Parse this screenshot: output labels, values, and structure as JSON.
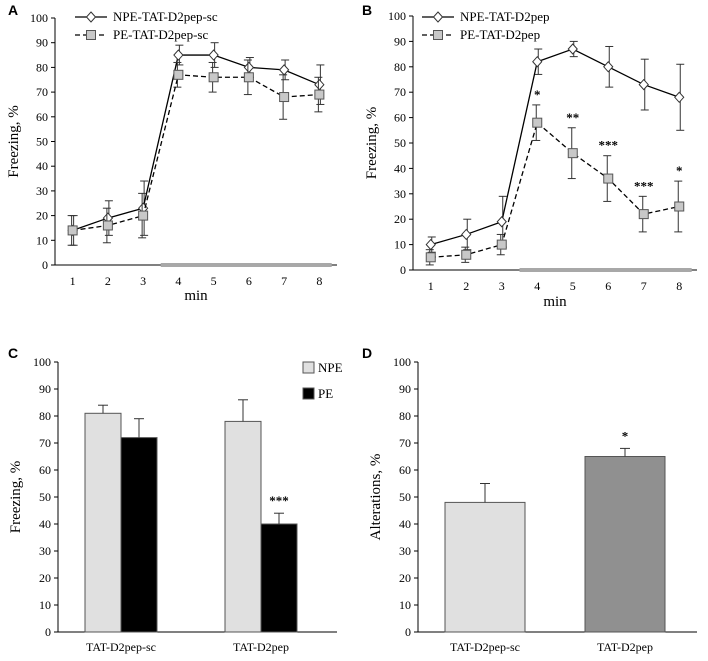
{
  "chart_data": [
    {
      "panel": "A",
      "type": "line",
      "x": [
        "1",
        "2",
        "3",
        "4",
        "5",
        "6",
        "7",
        "8"
      ],
      "ylabel": "Freezing, %",
      "xlabel": "min",
      "ylim": [
        0,
        100
      ],
      "yticks": [
        "0",
        "10",
        "20",
        "30",
        "40",
        "50",
        "60",
        "70",
        "80",
        "90",
        "100"
      ],
      "shock_bar_x": [
        4,
        8
      ],
      "series": [
        {
          "name": "NPE-TAT-D2pep-sc",
          "marker": "diamond",
          "line": "solid",
          "values": [
            14,
            19,
            23,
            85,
            85,
            80,
            79,
            73
          ],
          "errors": [
            6,
            7,
            11,
            4,
            5,
            4,
            4,
            8
          ]
        },
        {
          "name": "PE-TAT-D2pep-sc",
          "marker": "square",
          "line": "dashed",
          "values": [
            14,
            16,
            20,
            77,
            76,
            76,
            68,
            69
          ],
          "errors": [
            6,
            7,
            9,
            5,
            6,
            7,
            9,
            7
          ]
        }
      ]
    },
    {
      "panel": "B",
      "type": "line",
      "x": [
        "1",
        "2",
        "3",
        "4",
        "5",
        "6",
        "7",
        "8"
      ],
      "ylabel": "Freezing, %",
      "xlabel": "min",
      "ylim": [
        0,
        100
      ],
      "yticks": [
        "0",
        "10",
        "20",
        "30",
        "40",
        "50",
        "60",
        "70",
        "80",
        "90",
        "100"
      ],
      "shock_bar_x": [
        4,
        8
      ],
      "series": [
        {
          "name": "NPE-TAT-D2pep",
          "marker": "diamond",
          "line": "solid",
          "values": [
            10,
            14,
            19,
            82,
            87,
            80,
            73,
            68
          ],
          "errors": [
            3,
            6,
            10,
            5,
            3,
            8,
            10,
            13
          ]
        },
        {
          "name": "PE-TAT-D2pep",
          "marker": "square",
          "line": "dashed",
          "values": [
            5,
            6,
            10,
            58,
            46,
            36,
            22,
            25
          ],
          "errors": [
            3,
            3,
            4,
            7,
            10,
            9,
            7,
            10
          ]
        }
      ],
      "annotations": [
        {
          "x": 4,
          "text": "*"
        },
        {
          "x": 5,
          "text": "**"
        },
        {
          "x": 6,
          "text": "***"
        },
        {
          "x": 7,
          "text": "***"
        },
        {
          "x": 8,
          "text": "*"
        }
      ]
    },
    {
      "panel": "C",
      "type": "bar",
      "categories": [
        "TAT-D2pep-sc",
        "TAT-D2pep"
      ],
      "ylabel": "Freezing, %",
      "ylim": [
        0,
        100
      ],
      "yticks": [
        "0",
        "10",
        "20",
        "30",
        "40",
        "50",
        "60",
        "70",
        "80",
        "90",
        "100"
      ],
      "series": [
        {
          "name": "NPE",
          "color": "#e0e0e0",
          "values": [
            81,
            78
          ],
          "errors": [
            3,
            8
          ]
        },
        {
          "name": "PE",
          "color": "#000000",
          "values": [
            72,
            40
          ],
          "errors": [
            7,
            4
          ]
        }
      ],
      "annotations": [
        {
          "category": 1,
          "series": 1,
          "text": "***"
        }
      ]
    },
    {
      "panel": "D",
      "type": "bar",
      "categories": [
        "TAT-D2pep-sc",
        "TAT-D2pep"
      ],
      "ylabel": "Alterations, %",
      "ylim": [
        0,
        100
      ],
      "yticks": [
        "0",
        "10",
        "20",
        "30",
        "40",
        "50",
        "60",
        "70",
        "80",
        "90",
        "100"
      ],
      "colors": [
        "#e0e0e0",
        "#909090"
      ],
      "values": [
        48,
        65
      ],
      "errors": [
        7,
        3
      ],
      "annotations": [
        {
          "category": 1,
          "text": "*"
        }
      ]
    }
  ]
}
